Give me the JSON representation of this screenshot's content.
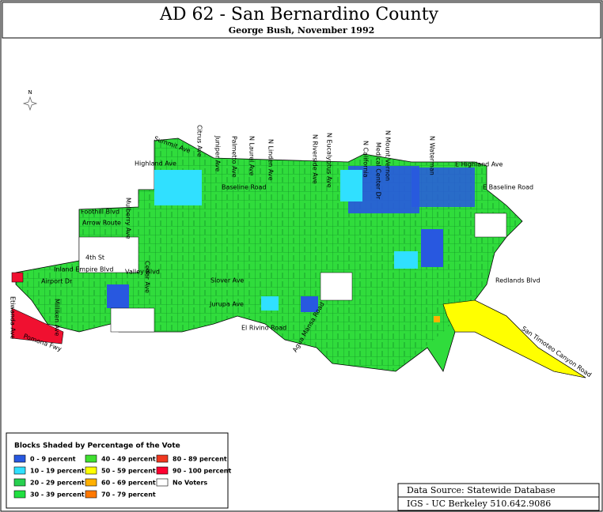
{
  "header": {
    "title": "AD 62 - San Bernardino County",
    "subtitle": "George Bush, November 1992"
  },
  "map": {
    "north": "N",
    "streets": [
      "Summit Ave",
      "Citrus Ave",
      "Highland Ave",
      "Foothill Blvd",
      "Arrow Route",
      "4th St",
      "Inland Empire Blvd",
      "Valley Blvd",
      "Slover Ave",
      "Jurupa Ave",
      "El Rivino Road",
      "Baseline Road",
      "Cedar Ave",
      "N Laurel Ave",
      "N Linden Ave",
      "Juniper Ave",
      "Palmetto Ave",
      "N Riverside Ave",
      "N Eucalyptus Ave",
      "N California",
      "N Mount Vernon",
      "Medical Center Dr",
      "N Waterman",
      "E Highland Ave",
      "E Baseline Road",
      "Redlands Blvd",
      "San Timoteo Canyon Road",
      "Agua Mansa Road",
      "Mulberry Ave",
      "Etiwanda Ave",
      "Milliken Ave",
      "Pomona Fwy",
      "Airport Dr"
    ]
  },
  "legend": {
    "title": "Blocks Shaded by Percentage of the Vote",
    "items": [
      {
        "label": "0 - 9 percent",
        "color": "#2858e0"
      },
      {
        "label": "10 - 19 percent",
        "color": "#30e0ff"
      },
      {
        "label": "20 - 29 percent",
        "color": "#28d050"
      },
      {
        "label": "30 - 39 percent",
        "color": "#20e040"
      },
      {
        "label": "40 - 49 percent",
        "color": "#40e030"
      },
      {
        "label": "50 - 59 percent",
        "color": "#ffff00"
      },
      {
        "label": "60 - 69 percent",
        "color": "#ffb000"
      },
      {
        "label": "70 - 79 percent",
        "color": "#ff7800"
      },
      {
        "label": "80 - 89 percent",
        "color": "#f03820"
      },
      {
        "label": "90 - 100 percent",
        "color": "#ff0030"
      },
      {
        "label": "No Voters",
        "color": "#ffffff"
      }
    ]
  },
  "source": {
    "line1": "Data Source: Statewide Database",
    "line2": "IGS - UC Berkeley 510.642.9086"
  }
}
